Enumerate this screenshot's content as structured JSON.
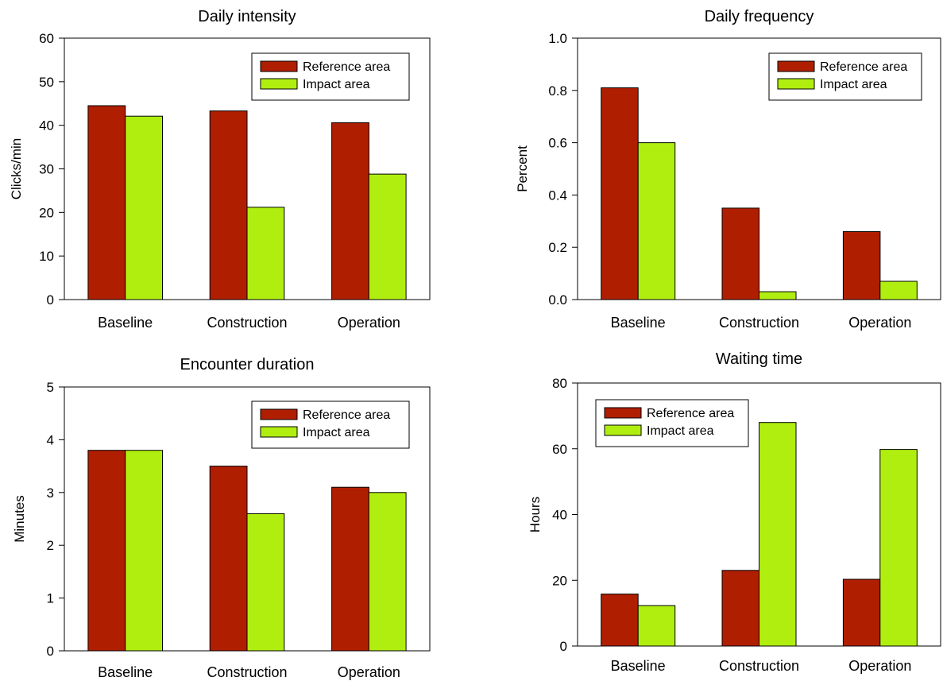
{
  "colors": {
    "reference": "#b01e00",
    "impact": "#b0ee10"
  },
  "chart_data": [
    {
      "id": "intensity",
      "type": "bar",
      "title": "Daily intensity",
      "xlabel": "",
      "ylabel": "Clicks/min",
      "categories": [
        "Baseline",
        "Construction",
        "Operation"
      ],
      "ylim": [
        0,
        60
      ],
      "yticks": [
        0,
        10,
        20,
        30,
        40,
        50,
        60
      ],
      "ytick_labels": [
        "0",
        "10",
        "20",
        "30",
        "40",
        "50",
        "60"
      ],
      "grid": false,
      "legend_position": "top-right",
      "series": [
        {
          "name": "Reference area",
          "color": "#b01e00",
          "values": [
            44.5,
            43.3,
            40.6
          ]
        },
        {
          "name": "Impact area",
          "color": "#b0ee10",
          "values": [
            42.1,
            21.2,
            28.8
          ]
        }
      ]
    },
    {
      "id": "frequency",
      "type": "bar",
      "title": "Daily frequency",
      "xlabel": "",
      "ylabel": "Percent",
      "categories": [
        "Baseline",
        "Construction",
        "Operation"
      ],
      "ylim": [
        0,
        1.0
      ],
      "yticks": [
        0,
        0.2,
        0.4,
        0.6,
        0.8,
        1.0
      ],
      "ytick_labels": [
        "0.0",
        "0.2",
        "0.4",
        "0.6",
        "0.8",
        "1.0"
      ],
      "grid": false,
      "legend_position": "top-right",
      "series": [
        {
          "name": "Reference area",
          "color": "#b01e00",
          "values": [
            0.81,
            0.35,
            0.26
          ]
        },
        {
          "name": "Impact area",
          "color": "#b0ee10",
          "values": [
            0.6,
            0.03,
            0.07
          ]
        }
      ]
    },
    {
      "id": "duration",
      "type": "bar",
      "title": "Encounter duration",
      "xlabel": "",
      "ylabel": "Minutes",
      "categories": [
        "Baseline",
        "Construction",
        "Operation"
      ],
      "ylim": [
        0,
        5
      ],
      "yticks": [
        0,
        1,
        2,
        3,
        4,
        5
      ],
      "ytick_labels": [
        "0",
        "1",
        "2",
        "3",
        "4",
        "5"
      ],
      "grid": false,
      "legend_position": "top-right",
      "series": [
        {
          "name": "Reference area",
          "color": "#b01e00",
          "values": [
            3.8,
            3.5,
            3.1
          ]
        },
        {
          "name": "Impact area",
          "color": "#b0ee10",
          "values": [
            3.8,
            2.6,
            3.0
          ]
        }
      ]
    },
    {
      "id": "waiting",
      "type": "bar",
      "title": "Waiting time",
      "xlabel": "",
      "ylabel": "Hours",
      "categories": [
        "Baseline",
        "Construction",
        "Operation"
      ],
      "ylim": [
        0,
        80
      ],
      "yticks": [
        0,
        20,
        40,
        60,
        80
      ],
      "ytick_labels": [
        "0",
        "20",
        "40",
        "60",
        "80"
      ],
      "grid": false,
      "legend_position": "top-left",
      "series": [
        {
          "name": "Reference area",
          "color": "#b01e00",
          "values": [
            15.8,
            23.0,
            20.3
          ]
        },
        {
          "name": "Impact area",
          "color": "#b0ee10",
          "values": [
            12.3,
            68.0,
            59.8
          ]
        }
      ]
    }
  ]
}
